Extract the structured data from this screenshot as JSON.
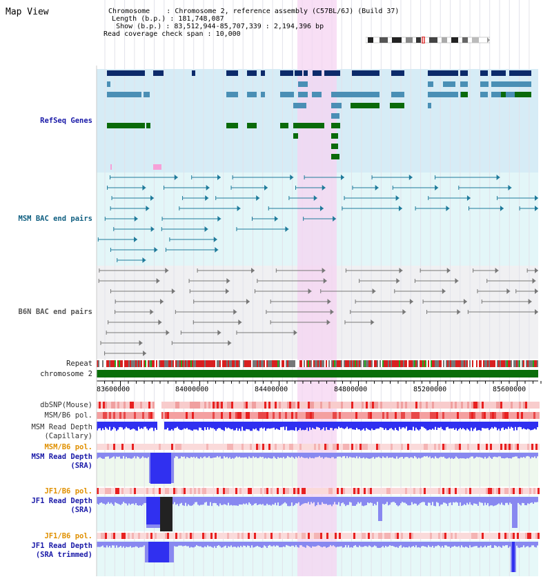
{
  "view_title": "Map View",
  "info": {
    "chromosome_label": "Chromosome",
    "chromosome_value": "Chromosome 2, reference assembly (C57BL/6J) (Build 37)",
    "length_label": "Length (b.p.)",
    "length_value": "181,748,087",
    "show_label": "Show (b.p.)",
    "show_value": "83,512,944-85,707,339 : 2,194,396 bp",
    "coverage_label": "Read coverage check span",
    "coverage_value": "10,000"
  },
  "tracks": {
    "refseq": "RefSeq Genes",
    "msm_bac": "MSM BAC end pairs",
    "b6n_bac": "B6N BAC end pairs",
    "repeat": "Repeat",
    "chromosome": "chromosome 2",
    "dbsnp": "dbSNP(Mouse)",
    "msm_b6_pol": "MSM/B6 pol.",
    "msm_read_depth_cap_1": "MSM Read Depth",
    "msm_read_depth_cap_2": "(Capillary)",
    "msm_b6_pol_2": "MSM/B6 pol.",
    "msm_read_depth_sra_1": "MSM Read Depth",
    "msm_read_depth_sra_2": "(SRA)",
    "jf1_b6_pol": "JF1/B6 pol.",
    "jf1_read_depth_sra_1": "JF1 Read Depth",
    "jf1_read_depth_sra_2": "(SRA)",
    "jf1_b6_pol_2": "JF1/B6 pol.",
    "jf1_read_depth_trim_1": "JF1 Read Depth",
    "jf1_read_depth_trim_2": "(SRA trimmed)"
  },
  "axis": {
    "ticks": [
      "83600000",
      "84000000",
      "84400000",
      "84800000",
      "85200000",
      "85600000"
    ]
  },
  "colors": {
    "highlight": "#f6d4f2",
    "refseq_bg": "#d6ecf6",
    "msm_bg": "#e3f6f8",
    "b6n_bg": "#f0f0f2",
    "gene_dark": "#0c2a6a",
    "gene_mid": "#4a8fb5",
    "gene_green": "#0a6a0a",
    "bac_teal": "#1e7a9a",
    "bac_gray": "#777777",
    "chromosome": "#0a6e0a",
    "repeat_red": "#d82020",
    "depth_blue": "#3030f0",
    "depth_light": "#8888f0"
  }
}
